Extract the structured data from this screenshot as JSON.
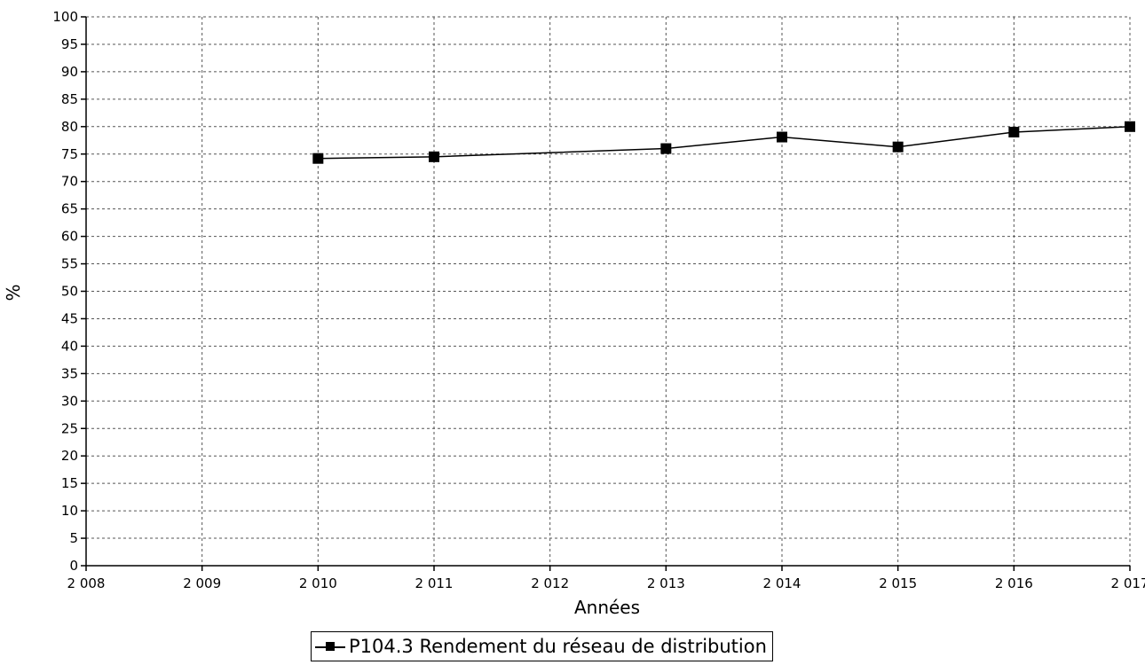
{
  "chart_data": {
    "type": "line",
    "xlabel": "Années",
    "ylabel": "%",
    "x_ticks": [
      "2 008",
      "2 009",
      "2 010",
      "2 011",
      "2 012",
      "2 013",
      "2 014",
      "2 015",
      "2 016",
      "2 017"
    ],
    "y_ticks": [
      0,
      5,
      10,
      15,
      20,
      25,
      30,
      35,
      40,
      45,
      50,
      55,
      60,
      65,
      70,
      75,
      80,
      85,
      90,
      95,
      100
    ],
    "xlim": [
      2008,
      2017
    ],
    "ylim": [
      0,
      100
    ],
    "grid": true,
    "legend_position": "bottom-center",
    "series": [
      {
        "name": "P104.3 Rendement du réseau de distribution",
        "color": "#000000",
        "marker": "square",
        "x": [
          2010,
          2011,
          2013,
          2014,
          2015,
          2016,
          2017
        ],
        "y": [
          74.2,
          74.5,
          76.0,
          78.1,
          76.3,
          79.0,
          80.0
        ]
      }
    ]
  }
}
